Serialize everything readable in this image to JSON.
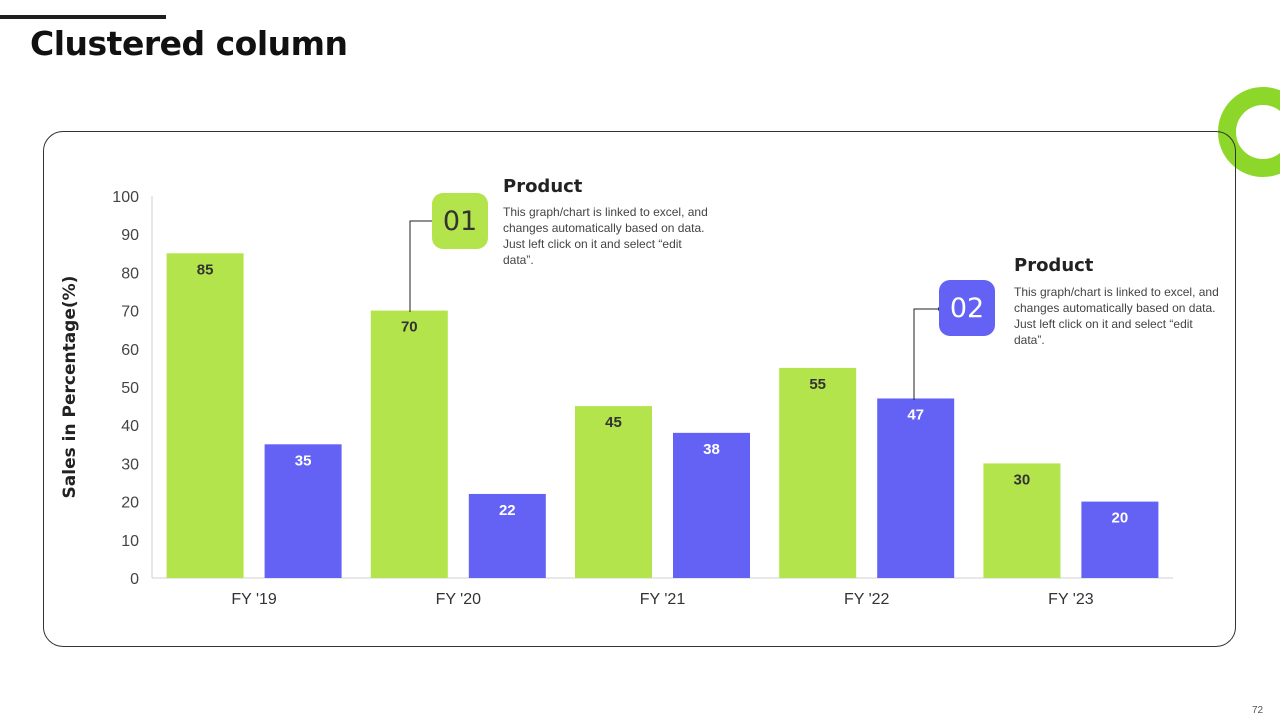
{
  "page": {
    "title": "Clustered column",
    "page_number": "72"
  },
  "colors": {
    "series_green": "#b3e44b",
    "series_blue": "#6462f4",
    "accent_green": "#8dd62a",
    "text_dark": "#222222"
  },
  "callouts": [
    {
      "badge": "01",
      "title": "Product",
      "text": "This graph/chart is linked to excel, and changes automatically based on data. Just left click on it and select “edit data”.",
      "badge_color": "#b3e44b",
      "badge_text_color": "#333333"
    },
    {
      "badge": "02",
      "title": "Product",
      "text": "This graph/chart is linked to excel, and changes automatically based on data. Just left click on it and select “edit data”.",
      "badge_color": "#6462f4",
      "badge_text_color": "#ffffff"
    }
  ],
  "chart_data": {
    "type": "bar",
    "categories": [
      "FY '19",
      "FY '20",
      "FY '21",
      "FY '22",
      "FY '23"
    ],
    "series": [
      {
        "values": [
          85,
          70,
          45,
          55,
          30
        ],
        "color": "#b3e44b",
        "label_color": "#333333"
      },
      {
        "values": [
          35,
          22,
          38,
          47,
          20
        ],
        "color": "#6462f4",
        "label_color": "#ffffff"
      }
    ],
    "ylabel": "Sales in Percentage(%)",
    "xlabel": "",
    "ylim": [
      0,
      100
    ],
    "yticks": [
      0,
      10,
      20,
      30,
      40,
      50,
      60,
      70,
      80,
      90,
      100
    ],
    "grid": false,
    "data_labels": true
  }
}
